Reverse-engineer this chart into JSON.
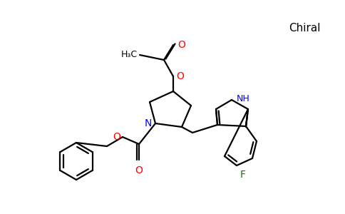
{
  "bg_color": "#ffffff",
  "title_text": "Chiral",
  "title_color": "#000000",
  "title_fontsize": 11,
  "atom_colors": {
    "O": "#ff0000",
    "N": "#0000ff",
    "F": "#008000",
    "C": "#000000"
  },
  "bond_color": "#000000",
  "bond_lw": 1.6,
  "figsize": [
    4.84,
    3.0
  ],
  "dpi": 100
}
